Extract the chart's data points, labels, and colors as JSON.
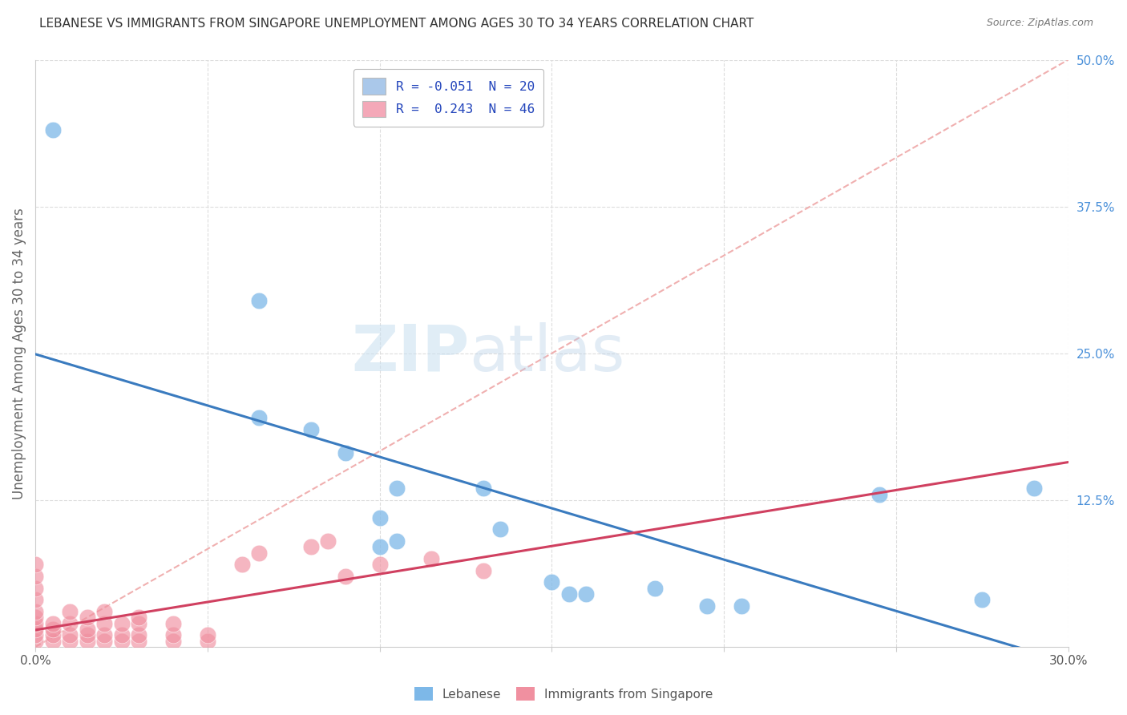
{
  "title": "LEBANESE VS IMMIGRANTS FROM SINGAPORE UNEMPLOYMENT AMONG AGES 30 TO 34 YEARS CORRELATION CHART",
  "source": "Source: ZipAtlas.com",
  "ylabel": "Unemployment Among Ages 30 to 34 years",
  "xlim": [
    0.0,
    0.3
  ],
  "ylim": [
    0.0,
    0.5
  ],
  "ytick_labels_right": [
    "50.0%",
    "37.5%",
    "25.0%",
    "12.5%"
  ],
  "yticks_right": [
    0.5,
    0.375,
    0.25,
    0.125
  ],
  "legend_items": [
    {
      "label": "R = -0.051  N = 20",
      "color": "#aac8ea"
    },
    {
      "label": "R =  0.243  N = 46",
      "color": "#f4a8b8"
    }
  ],
  "lebanese_color": "#7db8e8",
  "singapore_color": "#f090a0",
  "lebanese_scatter": [
    [
      0.005,
      0.44
    ],
    [
      0.065,
      0.295
    ],
    [
      0.065,
      0.195
    ],
    [
      0.08,
      0.185
    ],
    [
      0.09,
      0.165
    ],
    [
      0.1,
      0.11
    ],
    [
      0.1,
      0.085
    ],
    [
      0.105,
      0.135
    ],
    [
      0.105,
      0.09
    ],
    [
      0.13,
      0.135
    ],
    [
      0.135,
      0.1
    ],
    [
      0.15,
      0.055
    ],
    [
      0.155,
      0.045
    ],
    [
      0.16,
      0.045
    ],
    [
      0.18,
      0.05
    ],
    [
      0.195,
      0.035
    ],
    [
      0.205,
      0.035
    ],
    [
      0.245,
      0.13
    ],
    [
      0.275,
      0.04
    ],
    [
      0.29,
      0.135
    ]
  ],
  "singapore_scatter": [
    [
      0.0,
      0.005
    ],
    [
      0.0,
      0.01
    ],
    [
      0.0,
      0.015
    ],
    [
      0.0,
      0.02
    ],
    [
      0.0,
      0.025
    ],
    [
      0.0,
      0.03
    ],
    [
      0.0,
      0.04
    ],
    [
      0.0,
      0.05
    ],
    [
      0.0,
      0.06
    ],
    [
      0.0,
      0.07
    ],
    [
      0.005,
      0.005
    ],
    [
      0.005,
      0.01
    ],
    [
      0.005,
      0.015
    ],
    [
      0.005,
      0.02
    ],
    [
      0.01,
      0.005
    ],
    [
      0.01,
      0.01
    ],
    [
      0.01,
      0.02
    ],
    [
      0.01,
      0.03
    ],
    [
      0.015,
      0.005
    ],
    [
      0.015,
      0.01
    ],
    [
      0.015,
      0.015
    ],
    [
      0.015,
      0.025
    ],
    [
      0.02,
      0.005
    ],
    [
      0.02,
      0.01
    ],
    [
      0.02,
      0.02
    ],
    [
      0.02,
      0.03
    ],
    [
      0.025,
      0.005
    ],
    [
      0.025,
      0.01
    ],
    [
      0.025,
      0.02
    ],
    [
      0.03,
      0.005
    ],
    [
      0.03,
      0.01
    ],
    [
      0.03,
      0.02
    ],
    [
      0.03,
      0.025
    ],
    [
      0.04,
      0.005
    ],
    [
      0.04,
      0.01
    ],
    [
      0.04,
      0.02
    ],
    [
      0.05,
      0.005
    ],
    [
      0.05,
      0.01
    ],
    [
      0.06,
      0.07
    ],
    [
      0.065,
      0.08
    ],
    [
      0.08,
      0.085
    ],
    [
      0.085,
      0.09
    ],
    [
      0.09,
      0.06
    ],
    [
      0.1,
      0.07
    ],
    [
      0.115,
      0.075
    ],
    [
      0.13,
      0.065
    ]
  ],
  "diag_line_color": "#f0b0b0",
  "trend_lebanese_color": "#3a7bbf",
  "trend_singapore_color": "#d04060",
  "background_color": "#ffffff",
  "grid_color": "#dddddd",
  "lebanese_trend_manual": [
    -0.051,
    0.3,
    0.12,
    0.1
  ],
  "singapore_trend_manual": [
    0.243,
    0.0,
    0.0,
    0.3
  ]
}
